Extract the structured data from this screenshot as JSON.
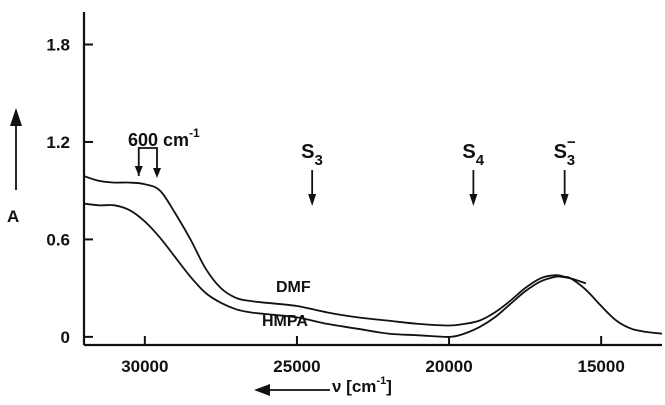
{
  "chart_data": {
    "type": "line",
    "title": "",
    "xlabel": "ν [cm⁻¹]",
    "ylabel": "A",
    "xlim": [
      32000,
      13000
    ],
    "ylim": [
      -0.05,
      2.0
    ],
    "x_ticks": [
      30000,
      25000,
      20000,
      15000
    ],
    "x_tick_labels": [
      "30000",
      "25000",
      "20000",
      "15000"
    ],
    "y_ticks": [
      0,
      0.6,
      1.2,
      1.8
    ],
    "y_tick_labels": [
      "0",
      "0.6",
      "1.2",
      "1.8"
    ],
    "grid": false,
    "series": [
      {
        "name": "DMF",
        "x": [
          32000,
          31500,
          31000,
          30500,
          30000,
          29500,
          29000,
          28500,
          28000,
          27500,
          27000,
          26500,
          26000,
          25000,
          24000,
          23000,
          22000,
          21000,
          20000,
          19500,
          19000,
          18500,
          18000,
          17500,
          17000,
          16500,
          16200,
          16000,
          15500,
          15000,
          14500,
          14000,
          13500,
          13000
        ],
        "y": [
          0.99,
          0.96,
          0.95,
          0.95,
          0.94,
          0.9,
          0.76,
          0.6,
          0.42,
          0.3,
          0.24,
          0.22,
          0.21,
          0.19,
          0.15,
          0.12,
          0.1,
          0.08,
          0.07,
          0.08,
          0.1,
          0.15,
          0.22,
          0.3,
          0.36,
          0.38,
          0.37,
          0.36,
          0.29,
          0.19,
          0.1,
          0.05,
          0.03,
          0.02
        ]
      },
      {
        "name": "HMPA",
        "x": [
          32000,
          31500,
          31000,
          30500,
          30000,
          29500,
          29000,
          28500,
          28000,
          27500,
          27000,
          26500,
          26000,
          25000,
          24000,
          23000,
          22000,
          21000,
          20000,
          19500,
          19000,
          18500,
          18000,
          17500,
          17000,
          16500,
          16300,
          16000,
          15500
        ],
        "y": [
          0.82,
          0.81,
          0.81,
          0.78,
          0.71,
          0.61,
          0.49,
          0.37,
          0.27,
          0.21,
          0.17,
          0.15,
          0.14,
          0.12,
          0.08,
          0.05,
          0.02,
          0.01,
          0.0,
          0.02,
          0.06,
          0.12,
          0.2,
          0.28,
          0.34,
          0.37,
          0.37,
          0.36,
          0.33
        ]
      }
    ],
    "annotations": [
      {
        "kind": "bracket",
        "label_main": "600 cm",
        "label_sup": "-1",
        "x_from": 30200,
        "x_to": 29600
      },
      {
        "kind": "marker",
        "main": "S",
        "sub": "3",
        "sup": "",
        "x": 24500
      },
      {
        "kind": "marker",
        "main": "S",
        "sub": "4",
        "sup": "",
        "x": 19200
      },
      {
        "kind": "marker",
        "main": "S",
        "sub": "3",
        "sup": "−",
        "x": 16200
      }
    ]
  },
  "labels": {
    "curve_dmf": "DMF",
    "curve_hmpa": "HMPA",
    "y_axis_label": "A",
    "x_axis_label_main": "ν [cm",
    "x_axis_label_sup": "-1",
    "x_axis_label_end": "]"
  }
}
